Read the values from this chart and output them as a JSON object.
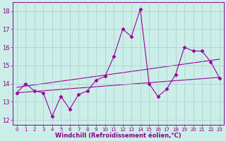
{
  "x": [
    0,
    1,
    2,
    3,
    4,
    5,
    6,
    7,
    8,
    9,
    10,
    11,
    12,
    13,
    14,
    15,
    16,
    17,
    18,
    19,
    20,
    21,
    22,
    23
  ],
  "y_data": [
    13.5,
    14.0,
    13.6,
    13.5,
    12.2,
    13.3,
    12.6,
    13.4,
    13.6,
    14.2,
    14.4,
    15.5,
    17.0,
    16.6,
    18.1,
    14.0,
    13.3,
    13.7,
    14.5,
    16.0,
    15.8,
    15.8,
    15.2,
    14.3
  ],
  "trend1_start": 13.5,
  "trend1_end": 14.35,
  "trend2_start": 13.8,
  "trend2_end": 15.35,
  "line_color": "#990099",
  "marker": "D",
  "background_color": "#cceee8",
  "grid_color": "#aacccc",
  "axis_color": "#880088",
  "ylim": [
    11.75,
    18.5
  ],
  "xlim": [
    -0.5,
    23.5
  ],
  "xlabel": "Windchill (Refroidissement éolien,°C)",
  "yticks": [
    12,
    13,
    14,
    15,
    16,
    17,
    18
  ],
  "xticks": [
    0,
    1,
    2,
    3,
    4,
    5,
    6,
    7,
    8,
    9,
    10,
    11,
    12,
    13,
    14,
    15,
    16,
    17,
    18,
    19,
    20,
    21,
    22,
    23
  ]
}
